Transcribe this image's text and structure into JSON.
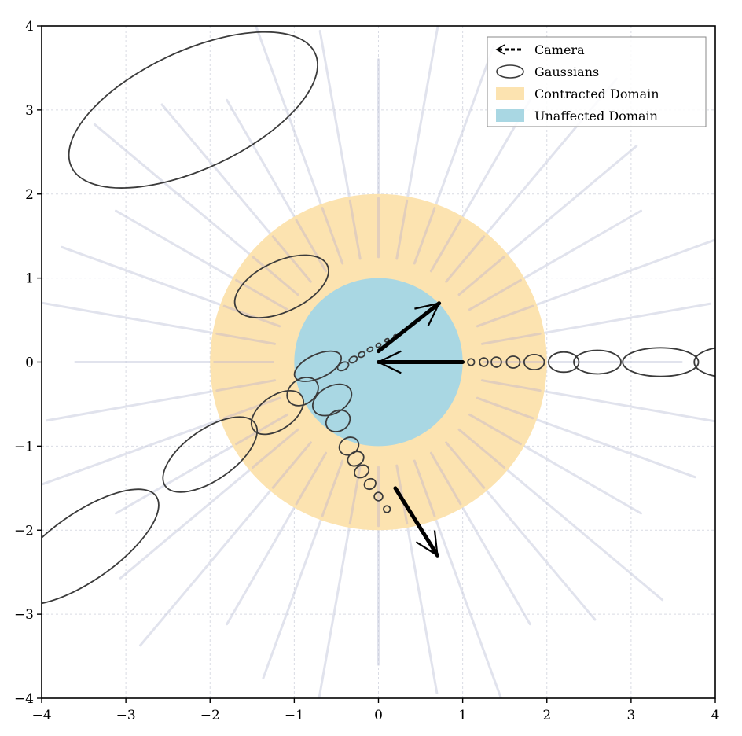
{
  "chart_data": {
    "type": "scatter",
    "title": "",
    "xlabel": "",
    "ylabel": "",
    "xlim": [
      -4,
      4
    ],
    "ylim": [
      -4,
      4
    ],
    "xticks": [
      -4,
      -3,
      -2,
      -1,
      0,
      1,
      2,
      3,
      4
    ],
    "yticks": [
      -4,
      -3,
      -2,
      -1,
      0,
      1,
      2,
      3,
      4
    ],
    "x_tick_labels": [
      "−4",
      "−3",
      "−2",
      "−1",
      "0",
      "1",
      "2",
      "3",
      "4"
    ],
    "y_tick_labels": [
      "−4",
      "−3",
      "−2",
      "−1",
      "0",
      "1",
      "2",
      "3",
      "4"
    ],
    "grid": true,
    "legend_position": "top-right",
    "legend": [
      "Camera",
      "Gaussians",
      "Contracted Domain",
      "Unaffected Domain"
    ],
    "regions": [
      {
        "name": "Contracted Domain",
        "shape": "circle",
        "center": [
          0,
          0
        ],
        "radius": 2,
        "color": "#fce3b0"
      },
      {
        "name": "Unaffected Domain",
        "shape": "circle",
        "center": [
          0,
          0
        ],
        "radius": 1,
        "color": "#a9d7e3"
      }
    ],
    "cameras": [
      {
        "position": [
          0,
          0
        ],
        "direction_deg": 28,
        "length": 0.82
      },
      {
        "position": [
          0,
          0
        ],
        "direction_deg": 180,
        "length": 0.0
      },
      {
        "position": [
          0,
          0
        ],
        "direction_deg": -60,
        "length": 0.9
      }
    ],
    "camera_ray_angles_deg": [
      28,
      0,
      -60
    ],
    "gaussian_rays": [
      {
        "angle_deg": 28,
        "samples": [
          [
            -0.42,
            -0.05,
            0.07,
            0.045
          ],
          [
            -0.3,
            0.03,
            0.05,
            0.035
          ],
          [
            -0.2,
            0.09,
            0.04,
            0.03
          ],
          [
            -0.1,
            0.15,
            0.035,
            0.025
          ],
          [
            0.0,
            0.2,
            0.03,
            0.022
          ],
          [
            0.1,
            0.26,
            0.025,
            0.018
          ],
          [
            0.2,
            0.31,
            0.02,
            0.015
          ]
        ]
      },
      {
        "angle_deg": 0,
        "samples": [
          [
            1.1,
            0.0,
            0.04,
            0.04
          ],
          [
            1.25,
            0.0,
            0.05,
            0.05
          ],
          [
            1.4,
            0.0,
            0.06,
            0.06
          ],
          [
            1.6,
            0.0,
            0.08,
            0.07
          ],
          [
            1.85,
            0.0,
            0.12,
            0.09
          ],
          [
            2.2,
            0.0,
            0.18,
            0.12
          ],
          [
            2.6,
            0.0,
            0.28,
            0.14
          ],
          [
            3.35,
            0.0,
            0.45,
            0.17
          ],
          [
            4.15,
            0.0,
            0.4,
            0.18
          ]
        ]
      },
      {
        "angle_deg": -60,
        "samples": [
          [
            -0.55,
            -0.45,
            0.16,
            0.25
          ],
          [
            -0.48,
            -0.7,
            0.12,
            0.15
          ],
          [
            -0.35,
            -1.0,
            0.1,
            0.12
          ],
          [
            -0.27,
            -1.15,
            0.08,
            0.1
          ],
          [
            -0.2,
            -1.3,
            0.07,
            0.09
          ],
          [
            -0.1,
            -1.45,
            0.06,
            0.07
          ],
          [
            0.0,
            -1.6,
            0.05,
            0.05
          ],
          [
            0.1,
            -1.75,
            0.04,
            0.04
          ]
        ]
      },
      {
        "angle_deg": 215,
        "samples": [
          [
            -0.9,
            -0.35,
            0.2,
            0.15
          ],
          [
            -1.2,
            -0.6,
            0.35,
            0.2
          ],
          [
            -2.0,
            -1.1,
            0.65,
            0.3
          ],
          [
            -3.5,
            -2.2,
            1.05,
            0.4
          ]
        ]
      },
      {
        "angle_deg": 115,
        "samples": [
          [
            -0.72,
            -0.05,
            0.14,
            0.3
          ],
          [
            -1.15,
            0.9,
            0.3,
            0.6
          ],
          [
            -2.2,
            3.0,
            0.7,
            1.6
          ]
        ]
      }
    ]
  }
}
